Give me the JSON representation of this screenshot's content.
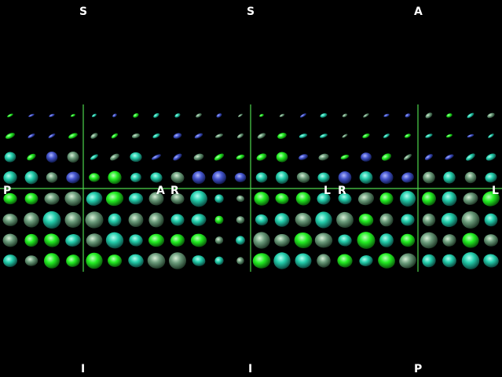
{
  "panels": [
    {
      "id": "sagittal",
      "labels": {
        "top": "S",
        "bottom": "I",
        "left": "P",
        "right": "A"
      }
    },
    {
      "id": "coronal",
      "labels": {
        "top": "S",
        "bottom": "I",
        "left": "R",
        "right": "L"
      }
    },
    {
      "id": "axial",
      "labels": {
        "top": "A",
        "bottom": "P",
        "left": "R",
        "right": "L"
      }
    }
  ],
  "colors": {
    "background": "#000000",
    "crosshair": "#4cd64c",
    "label": "#ffffff",
    "glyph_green": "#22ee22",
    "glyph_teal": "#22ccaa",
    "glyph_blue": "#4455cc"
  },
  "glyph_icons": "ellipsoid-icon"
}
